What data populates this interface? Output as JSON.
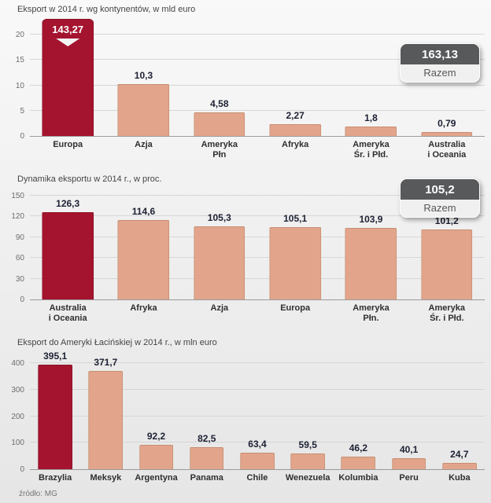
{
  "page": {
    "source": "źródło: MG"
  },
  "colors": {
    "bar_fill": "#e2a58c",
    "bar_border": "#c68e70",
    "highlight_fill": "#a5142f",
    "highlight_border": "#8c0f26",
    "value_text": "#1d2133",
    "axis_text": "#6e6e6e",
    "xlabel_text": "#2f2f2f",
    "grid_line": "#d6d6d6",
    "baseline": "#9b9b9b",
    "badge_top_bg": "#58595b",
    "badge_top_text": "#ffffff",
    "badge_bottom_bg": "#f0f0f0",
    "badge_bottom_text": "#565656",
    "title_text": "#454545"
  },
  "chart_data": [
    {
      "type": "bar",
      "title": "Eksport w 2014 r. wg kontynentów, w mld euro",
      "categories": [
        "Europa",
        "Azja",
        "Ameryka\nPłn",
        "Afryka",
        "Ameryka\nŚr. i Płd.",
        "Australia\ni Oceania"
      ],
      "values": [
        143.27,
        10.3,
        4.58,
        2.27,
        1.8,
        0.79
      ],
      "value_labels": [
        "143,27",
        "10,3",
        "4,58",
        "2,27",
        "1,8",
        "0,79"
      ],
      "highlight_index": 0,
      "axis_break_on_highlight": true,
      "ylim": [
        0,
        20
      ],
      "yticks": [
        0,
        5,
        10,
        15,
        20
      ],
      "grid": true,
      "legend": "none",
      "total": {
        "value": "163,13",
        "label": "Razem"
      }
    },
    {
      "type": "bar",
      "title": "Dynamika eksportu w 2014 r., w proc.",
      "categories": [
        "Australia\ni Oceania",
        "Afryka",
        "Azja",
        "Europa",
        "Ameryka\nPłn.",
        "Ameryka\nŚr. i Płd."
      ],
      "values": [
        126.3,
        114.6,
        105.3,
        105.1,
        103.9,
        101.2
      ],
      "value_labels": [
        "126,3",
        "114,6",
        "105,3",
        "105,1",
        "103,9",
        "101,2"
      ],
      "highlight_index": 0,
      "axis_break_on_highlight": false,
      "ylim": [
        0,
        150
      ],
      "yticks": [
        0,
        30,
        60,
        90,
        120,
        150
      ],
      "grid": true,
      "legend": "none",
      "total": {
        "value": "105,2",
        "label": "Razem"
      }
    },
    {
      "type": "bar",
      "title": "Eksport do Ameryki Łacińskiej w 2014 r., w mln euro",
      "categories": [
        "Brazylia",
        "Meksyk",
        "Argentyna",
        "Panama",
        "Chile",
        "Wenezuela",
        "Kolumbia",
        "Peru",
        "Kuba"
      ],
      "values": [
        395.1,
        371.7,
        92.2,
        82.5,
        63.4,
        59.5,
        46.2,
        40.1,
        24.7
      ],
      "value_labels": [
        "395,1",
        "371,7",
        "92,2",
        "82,5",
        "63,4",
        "59,5",
        "46,2",
        "40,1",
        "24,7"
      ],
      "highlight_index": 0,
      "axis_break_on_highlight": false,
      "ylim": [
        0,
        400
      ],
      "yticks": [
        0,
        100,
        200,
        300,
        400
      ],
      "grid": true,
      "legend": "none",
      "total": null
    }
  ]
}
